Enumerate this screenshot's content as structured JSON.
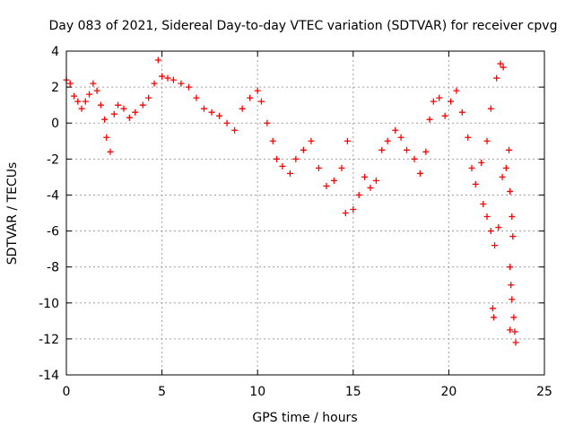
{
  "chart_data": {
    "type": "scatter",
    "title": "Day 083 of 2021, Sidereal Day-to-day VTEC variation (SDTVAR) for receiver cpvg",
    "xlabel": "GPS time / hours",
    "ylabel": "SDTVAR / TECUs",
    "xlim": [
      0,
      25
    ],
    "ylim": [
      -14,
      4
    ],
    "xticks": [
      0,
      5,
      10,
      15,
      20,
      25
    ],
    "yticks": [
      -14,
      -12,
      -10,
      -8,
      -6,
      -4,
      -2,
      0,
      2,
      4
    ],
    "grid": true,
    "marker": "+",
    "color": "#ff0000",
    "series": [
      {
        "name": "SDTVAR",
        "points": [
          [
            0.0,
            2.4
          ],
          [
            0.2,
            2.2
          ],
          [
            0.4,
            1.5
          ],
          [
            0.6,
            1.2
          ],
          [
            0.8,
            0.8
          ],
          [
            1.0,
            1.2
          ],
          [
            1.2,
            1.6
          ],
          [
            1.4,
            2.2
          ],
          [
            1.6,
            1.8
          ],
          [
            1.8,
            1.0
          ],
          [
            2.0,
            0.2
          ],
          [
            2.1,
            -0.8
          ],
          [
            2.3,
            -1.6
          ],
          [
            2.5,
            0.5
          ],
          [
            2.7,
            1.0
          ],
          [
            3.0,
            0.8
          ],
          [
            3.3,
            0.3
          ],
          [
            3.6,
            0.6
          ],
          [
            4.0,
            1.0
          ],
          [
            4.3,
            1.4
          ],
          [
            4.6,
            2.2
          ],
          [
            4.8,
            3.5
          ],
          [
            5.0,
            2.6
          ],
          [
            5.3,
            2.5
          ],
          [
            5.6,
            2.4
          ],
          [
            6.0,
            2.2
          ],
          [
            6.4,
            2.0
          ],
          [
            6.8,
            1.4
          ],
          [
            7.2,
            0.8
          ],
          [
            7.6,
            0.6
          ],
          [
            8.0,
            0.4
          ],
          [
            8.4,
            0.0
          ],
          [
            8.8,
            -0.4
          ],
          [
            9.2,
            0.8
          ],
          [
            9.6,
            1.4
          ],
          [
            10.0,
            1.8
          ],
          [
            10.2,
            1.2
          ],
          [
            10.5,
            0.0
          ],
          [
            10.8,
            -1.0
          ],
          [
            11.0,
            -2.0
          ],
          [
            11.3,
            -2.4
          ],
          [
            11.7,
            -2.8
          ],
          [
            12.0,
            -2.0
          ],
          [
            12.4,
            -1.5
          ],
          [
            12.8,
            -1.0
          ],
          [
            13.2,
            -2.5
          ],
          [
            13.6,
            -3.5
          ],
          [
            14.0,
            -3.2
          ],
          [
            14.4,
            -2.5
          ],
          [
            14.7,
            -1.0
          ],
          [
            14.6,
            -5.0
          ],
          [
            15.0,
            -4.8
          ],
          [
            15.3,
            -4.0
          ],
          [
            15.6,
            -3.0
          ],
          [
            15.9,
            -3.6
          ],
          [
            16.2,
            -3.2
          ],
          [
            16.5,
            -1.5
          ],
          [
            16.8,
            -1.0
          ],
          [
            17.2,
            -0.4
          ],
          [
            17.5,
            -0.8
          ],
          [
            17.8,
            -1.5
          ],
          [
            18.2,
            -2.0
          ],
          [
            18.5,
            -2.8
          ],
          [
            18.8,
            -1.6
          ],
          [
            19.0,
            0.2
          ],
          [
            19.2,
            1.2
          ],
          [
            19.5,
            1.4
          ],
          [
            19.8,
            0.4
          ],
          [
            20.1,
            1.2
          ],
          [
            20.4,
            1.8
          ],
          [
            20.7,
            0.6
          ],
          [
            21.0,
            -0.8
          ],
          [
            21.2,
            -2.5
          ],
          [
            21.4,
            -3.4
          ],
          [
            21.7,
            -2.2
          ],
          [
            22.0,
            -1.0
          ],
          [
            22.2,
            0.8
          ],
          [
            22.5,
            2.5
          ],
          [
            22.7,
            3.3
          ],
          [
            22.85,
            3.1
          ],
          [
            21.8,
            -4.5
          ],
          [
            22.0,
            -5.2
          ],
          [
            22.2,
            -6.0
          ],
          [
            22.4,
            -6.8
          ],
          [
            22.6,
            -5.8
          ],
          [
            22.8,
            -3.0
          ],
          [
            23.0,
            -2.5
          ],
          [
            23.15,
            -1.5
          ],
          [
            23.2,
            -3.8
          ],
          [
            23.3,
            -5.2
          ],
          [
            23.35,
            -6.3
          ],
          [
            23.2,
            -8.0
          ],
          [
            23.25,
            -9.0
          ],
          [
            23.3,
            -9.8
          ],
          [
            23.4,
            -10.8
          ],
          [
            23.45,
            -11.6
          ],
          [
            23.5,
            -12.2
          ],
          [
            22.3,
            -10.3
          ],
          [
            22.35,
            -10.8
          ],
          [
            23.2,
            -11.5
          ]
        ]
      }
    ]
  }
}
